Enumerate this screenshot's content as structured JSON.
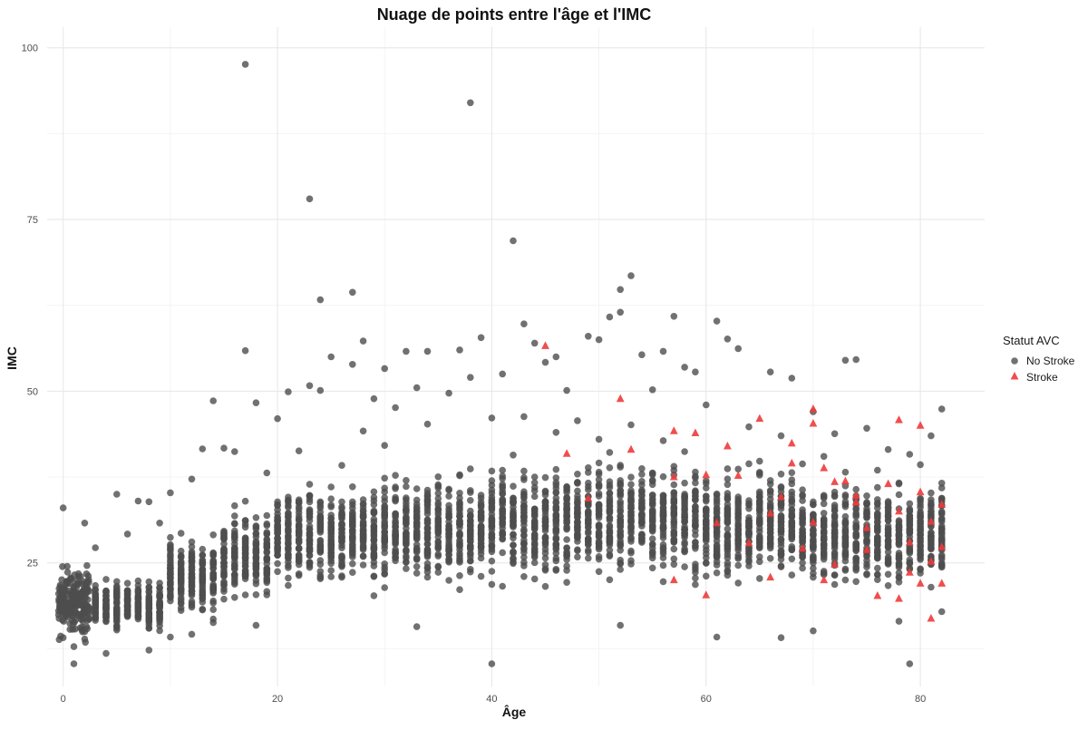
{
  "chart_data": {
    "type": "scatter",
    "title": "Nuage de points entre l'âge et l'IMC",
    "xlabel": "Âge",
    "ylabel": "IMC",
    "xlim": [
      -1.5,
      86
    ],
    "ylim": [
      7,
      103
    ],
    "x_ticks": [
      {
        "value": 0,
        "label": "0"
      },
      {
        "value": 20,
        "label": "20"
      },
      {
        "value": 40,
        "label": "40"
      },
      {
        "value": 60,
        "label": "60"
      },
      {
        "value": 80,
        "label": "80"
      }
    ],
    "y_ticks": [
      {
        "value": 25,
        "label": "25"
      },
      {
        "value": 50,
        "label": "50"
      },
      {
        "value": 75,
        "label": "75"
      },
      {
        "value": 100,
        "label": "100"
      }
    ],
    "grid": true,
    "legend": {
      "title": "Statut AVC",
      "placement": "right",
      "entries": [
        {
          "label": "No Stroke",
          "shape": "circle",
          "color": "#4d4d4d"
        },
        {
          "label": "Stroke",
          "shape": "triangle",
          "color": "#ee3b3b"
        }
      ]
    },
    "series": [
      {
        "name": "No Stroke",
        "color": "#4d4d4d",
        "shape": "circle",
        "points": [
          [
            17,
            97.6
          ],
          [
            38,
            92
          ],
          [
            23,
            78
          ],
          [
            42,
            71.9
          ],
          [
            53,
            66.8
          ],
          [
            52,
            64.8
          ],
          [
            52,
            61.5
          ],
          [
            57,
            60.9
          ],
          [
            61,
            60.2
          ],
          [
            24,
            63.3
          ],
          [
            27,
            64.4
          ],
          [
            43,
            59.8
          ],
          [
            62,
            57.6
          ],
          [
            39,
            57.8
          ],
          [
            40,
            10.3
          ],
          [
            79,
            10.3
          ],
          [
            1,
            10.3
          ],
          [
            17,
            55.9
          ],
          [
            25,
            55
          ],
          [
            28,
            57.3
          ],
          [
            30,
            53.3
          ],
          [
            32,
            55.8
          ],
          [
            34,
            55.8
          ],
          [
            37,
            56
          ],
          [
            41,
            52.5
          ],
          [
            44,
            57
          ],
          [
            46,
            55
          ],
          [
            49,
            58
          ],
          [
            50,
            57.5
          ],
          [
            51,
            60.8
          ],
          [
            54,
            55.3
          ],
          [
            56,
            55.8
          ],
          [
            58,
            53.5
          ],
          [
            59,
            52.8
          ],
          [
            63,
            56.2
          ],
          [
            66,
            52.8
          ],
          [
            68,
            51.9
          ],
          [
            73,
            54.5
          ],
          [
            74,
            54.6
          ],
          [
            82,
            47.4
          ],
          [
            10,
            35.2
          ],
          [
            12,
            37.2
          ],
          [
            13,
            41.6
          ],
          [
            14,
            48.6
          ],
          [
            18,
            48.3
          ],
          [
            20,
            46
          ],
          [
            21,
            49.9
          ],
          [
            23,
            50.8
          ],
          [
            24,
            50.1
          ],
          [
            27,
            53.9
          ],
          [
            29,
            48.9
          ],
          [
            31,
            47.6
          ],
          [
            33,
            50.5
          ],
          [
            36,
            49.7
          ],
          [
            38,
            52
          ],
          [
            45,
            54.2
          ],
          [
            47,
            50.1
          ],
          [
            55,
            50.2
          ],
          [
            60,
            48
          ],
          [
            64,
            44.8
          ],
          [
            67,
            43.5
          ],
          [
            70,
            47
          ],
          [
            72,
            43.8
          ],
          [
            75,
            44.6
          ],
          [
            77,
            41.5
          ],
          [
            79,
            40.8
          ],
          [
            81,
            43.5
          ],
          [
            0,
            33
          ],
          [
            2,
            30.8
          ],
          [
            3,
            27.2
          ],
          [
            5,
            35
          ],
          [
            6,
            29.2
          ],
          [
            7,
            34
          ],
          [
            8,
            33.9
          ],
          [
            9,
            30.8
          ],
          [
            11,
            29.3
          ],
          [
            15,
            41.7
          ],
          [
            16,
            41.2
          ],
          [
            19,
            38.1
          ],
          [
            22,
            41.3
          ],
          [
            26,
            39.2
          ],
          [
            28,
            44.2
          ],
          [
            30,
            42.1
          ],
          [
            34,
            45.2
          ],
          [
            40,
            46.1
          ],
          [
            43,
            46.3
          ],
          [
            46,
            44
          ],
          [
            48,
            45.7
          ],
          [
            50,
            43
          ],
          [
            53,
            45.1
          ],
          [
            56,
            42.8
          ],
          [
            58,
            41.2
          ],
          [
            62,
            38.7
          ],
          [
            65,
            39.8
          ],
          [
            69,
            39.4
          ],
          [
            71,
            40.5
          ],
          [
            73,
            38.2
          ],
          [
            76,
            38.5
          ],
          [
            78,
            36.5
          ],
          [
            80,
            39.3
          ],
          [
            82,
            36.6
          ],
          [
            0,
            14.1
          ],
          [
            1,
            12.8
          ],
          [
            2,
            13.9
          ],
          [
            4,
            11.8
          ],
          [
            8,
            12.3
          ],
          [
            10,
            14.2
          ],
          [
            12,
            14.6
          ],
          [
            14,
            16.3
          ],
          [
            18,
            15.9
          ],
          [
            33,
            15.7
          ],
          [
            52,
            15.9
          ],
          [
            61,
            14.2
          ],
          [
            67,
            14.1
          ],
          [
            70,
            15.1
          ],
          [
            78,
            16.5
          ],
          [
            82,
            17.9
          ]
        ]
      },
      {
        "name": "Stroke",
        "color": "#ee3b3b",
        "shape": "triangle",
        "points": [
          [
            45,
            56.6
          ],
          [
            47,
            40.9
          ],
          [
            49,
            34.4
          ],
          [
            52,
            48.9
          ],
          [
            53,
            41.5
          ],
          [
            57,
            44.2
          ],
          [
            57,
            37.5
          ],
          [
            59,
            43.9
          ],
          [
            60,
            37.8
          ],
          [
            60,
            20.3
          ],
          [
            62,
            42
          ],
          [
            63,
            37.7
          ],
          [
            65,
            46
          ],
          [
            66,
            32.2
          ],
          [
            68,
            42.4
          ],
          [
            68,
            39.5
          ],
          [
            70,
            47.4
          ],
          [
            70,
            45.3
          ],
          [
            70,
            30.9
          ],
          [
            71,
            38.8
          ],
          [
            71,
            22.5
          ],
          [
            72,
            36.8
          ],
          [
            73,
            36.9
          ],
          [
            74,
            34.8
          ],
          [
            74,
            33.8
          ],
          [
            75,
            30.1
          ],
          [
            76,
            20.2
          ],
          [
            77,
            36.5
          ],
          [
            78,
            45.8
          ],
          [
            78,
            32.5
          ],
          [
            78,
            19.8
          ],
          [
            79,
            28
          ],
          [
            80,
            45
          ],
          [
            80,
            35.3
          ],
          [
            80,
            22
          ],
          [
            81,
            16.9
          ],
          [
            81,
            31
          ],
          [
            81,
            25.2
          ],
          [
            82,
            33.5
          ],
          [
            82,
            27.3
          ],
          [
            82,
            22
          ],
          [
            57,
            22.5
          ],
          [
            64,
            27.9
          ],
          [
            69,
            27.1
          ],
          [
            72,
            24.8
          ],
          [
            75,
            26.9
          ],
          [
            79,
            23.6
          ],
          [
            66,
            22.9
          ],
          [
            61,
            30.8
          ],
          [
            67,
            34.6
          ]
        ]
      }
    ],
    "dense_bands": {
      "description_free": true,
      "bands": [
        {
          "from": 0,
          "to": 2,
          "min": 13.5,
          "max": 25
        },
        {
          "from": 3,
          "to": 9,
          "min": 14.5,
          "max": 23
        },
        {
          "from": 10,
          "to": 14,
          "min": 16,
          "max": 30
        },
        {
          "from": 15,
          "to": 19,
          "min": 18,
          "max": 34
        },
        {
          "from": 20,
          "to": 29,
          "min": 20,
          "max": 38
        },
        {
          "from": 30,
          "to": 39,
          "min": 20,
          "max": 40
        },
        {
          "from": 40,
          "to": 49,
          "min": 21,
          "max": 41
        },
        {
          "from": 50,
          "to": 59,
          "min": 21,
          "max": 42
        },
        {
          "from": 60,
          "to": 69,
          "min": 21,
          "max": 40
        },
        {
          "from": 70,
          "to": 82,
          "min": 20,
          "max": 38
        }
      ]
    }
  }
}
